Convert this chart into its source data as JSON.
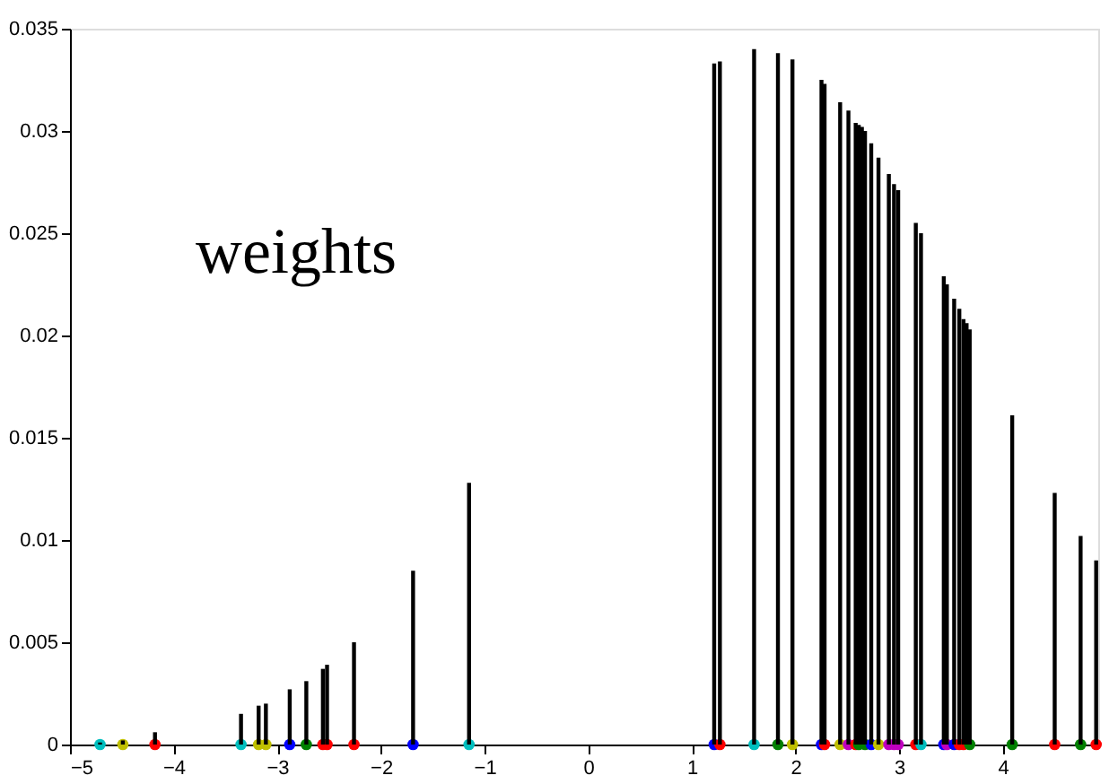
{
  "chart_data": {
    "type": "bar",
    "annotations": [
      "weights"
    ],
    "xlim": [
      -5,
      4.92
    ],
    "ylim": [
      0,
      0.035
    ],
    "xticks": [
      -5,
      -4,
      -3,
      -2,
      -1,
      0,
      1,
      2,
      3,
      4
    ],
    "yticks": [
      0,
      0.005,
      0.01,
      0.015,
      0.02,
      0.025,
      0.03,
      0.035
    ],
    "series": [
      {
        "type": "bar",
        "color": "#000000",
        "x": [
          -4.71,
          -4.49,
          -4.18,
          -3.35,
          -3.18,
          -3.11,
          -2.88,
          -2.72,
          -2.56,
          -2.52,
          -2.26,
          -1.69,
          -1.15,
          1.215,
          1.27,
          1.6,
          1.83,
          1.97,
          2.25,
          2.28,
          2.43,
          2.51,
          2.58,
          2.61,
          2.64,
          2.67,
          2.73,
          2.8,
          2.9,
          2.95,
          2.99,
          3.16,
          3.21,
          3.43,
          3.46,
          3.53,
          3.58,
          3.62,
          3.65,
          3.68,
          4.09,
          4.5,
          4.75,
          4.9
        ],
        "values": [
          0.0001,
          0.0002,
          0.0006,
          0.0015,
          0.0019,
          0.002,
          0.0027,
          0.0031,
          0.0037,
          0.0039,
          0.005,
          0.0085,
          0.0128,
          0.0333,
          0.0334,
          0.034,
          0.0338,
          0.0335,
          0.0325,
          0.0323,
          0.0314,
          0.031,
          0.0304,
          0.0303,
          0.0302,
          0.03,
          0.0294,
          0.0287,
          0.0279,
          0.0274,
          0.0271,
          0.0255,
          0.025,
          0.0229,
          0.0225,
          0.0218,
          0.0213,
          0.0208,
          0.0206,
          0.0203,
          0.0161,
          0.0123,
          0.0102,
          0.009
        ]
      },
      {
        "type": "scatter",
        "marker": "circle",
        "x": [
          -4.71,
          -4.49,
          -4.18,
          -3.35,
          -3.18,
          -3.11,
          -2.88,
          -2.72,
          -2.56,
          -2.52,
          -2.26,
          -1.69,
          -1.15,
          1.215,
          1.27,
          1.6,
          1.83,
          1.97,
          2.25,
          2.28,
          2.43,
          2.51,
          2.58,
          2.61,
          2.67,
          2.73,
          2.8,
          2.9,
          2.95,
          2.99,
          3.16,
          3.21,
          3.43,
          3.46,
          3.53,
          3.58,
          3.62,
          3.68,
          4.09,
          4.5,
          4.75,
          4.9
        ],
        "values": [
          0,
          0,
          0,
          0,
          0,
          0,
          0,
          0,
          0,
          0,
          0,
          0,
          0,
          0,
          0,
          0,
          0,
          0,
          0,
          0,
          0,
          0,
          0,
          0,
          0,
          0,
          0,
          0,
          0,
          0,
          0,
          0,
          0,
          0,
          0,
          0,
          0,
          0,
          0,
          0,
          0,
          0
        ],
        "colors": [
          "#00bfbf",
          "#bfbf00",
          "#ff0000",
          "#00bfbf",
          "#bfbf00",
          "#bfbf00",
          "#0000ff",
          "#008000",
          "#ff0000",
          "#ff0000",
          "#ff0000",
          "#0000ff",
          "#00bfbf",
          "#0000ff",
          "#ff0000",
          "#00bfbf",
          "#008000",
          "#bfbf00",
          "#0000ff",
          "#ff0000",
          "#bfbf00",
          "#bf00bf",
          "#ff0000",
          "#008000",
          "#008000",
          "#0000ff",
          "#bfbf00",
          "#bf00bf",
          "#bf00bf",
          "#bf00bf",
          "#ff0000",
          "#00bfbf",
          "#0000ff",
          "#bf00bf",
          "#0000ff",
          "#ff0000",
          "#ff0000",
          "#008000",
          "#008000",
          "#ff0000",
          "#008000",
          "#ff0000"
        ]
      }
    ]
  }
}
